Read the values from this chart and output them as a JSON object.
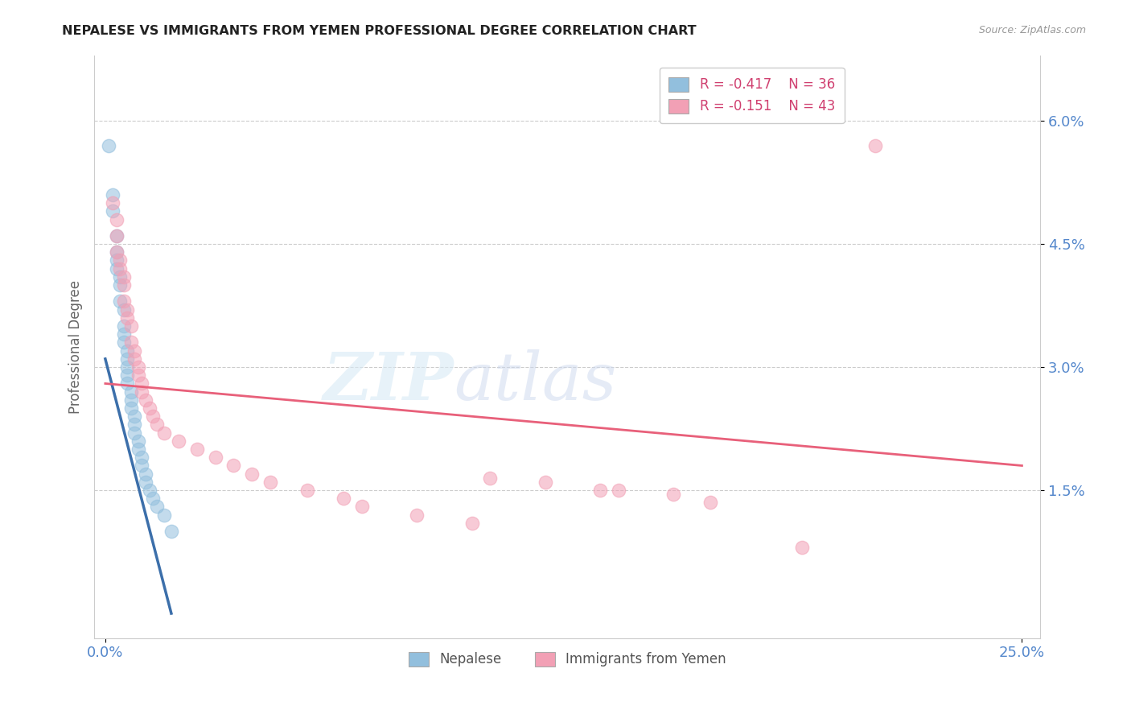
{
  "title": "NEPALESE VS IMMIGRANTS FROM YEMEN PROFESSIONAL DEGREE CORRELATION CHART",
  "source": "Source: ZipAtlas.com",
  "ylabel": "Professional Degree",
  "xlim": [
    0.0,
    0.25
  ],
  "ylim": [
    0.0,
    0.065
  ],
  "ytick_values": [
    0.015,
    0.03,
    0.045,
    0.06
  ],
  "ytick_labels": [
    "1.5%",
    "3.0%",
    "4.5%",
    "6.0%"
  ],
  "xtick_values": [
    0.0,
    0.25
  ],
  "xtick_labels": [
    "0.0%",
    "25.0%"
  ],
  "legend_blue_r": "-0.417",
  "legend_blue_n": "36",
  "legend_pink_r": "-0.151",
  "legend_pink_n": "43",
  "blue_color": "#92bfdd",
  "pink_color": "#f2a0b5",
  "blue_line_color": "#3c6faa",
  "pink_line_color": "#e8607a",
  "blue_scatter_edge": "#7aadd0",
  "pink_scatter_edge": "#ee8da5",
  "nepalese_x": [
    0.001,
    0.002,
    0.002,
    0.003,
    0.003,
    0.003,
    0.003,
    0.004,
    0.004,
    0.004,
    0.005,
    0.005,
    0.005,
    0.005,
    0.006,
    0.006,
    0.006,
    0.006,
    0.006,
    0.007,
    0.007,
    0.007,
    0.008,
    0.008,
    0.008,
    0.009,
    0.009,
    0.01,
    0.01,
    0.011,
    0.011,
    0.012,
    0.013,
    0.014,
    0.016,
    0.018
  ],
  "nepalese_y": [
    0.057,
    0.051,
    0.049,
    0.046,
    0.044,
    0.043,
    0.042,
    0.041,
    0.04,
    0.038,
    0.037,
    0.035,
    0.034,
    0.033,
    0.032,
    0.031,
    0.03,
    0.029,
    0.028,
    0.027,
    0.026,
    0.025,
    0.024,
    0.023,
    0.022,
    0.021,
    0.02,
    0.019,
    0.018,
    0.017,
    0.016,
    0.015,
    0.014,
    0.013,
    0.012,
    0.01
  ],
  "blue_line_x": [
    0.0,
    0.018
  ],
  "blue_line_y": [
    0.031,
    0.0
  ],
  "yemen_x": [
    0.002,
    0.003,
    0.003,
    0.003,
    0.004,
    0.004,
    0.005,
    0.005,
    0.005,
    0.006,
    0.006,
    0.007,
    0.007,
    0.008,
    0.008,
    0.009,
    0.009,
    0.01,
    0.01,
    0.011,
    0.012,
    0.013,
    0.014,
    0.016,
    0.02,
    0.025,
    0.03,
    0.035,
    0.04,
    0.045,
    0.055,
    0.065,
    0.07,
    0.085,
    0.1,
    0.105,
    0.12,
    0.135,
    0.14,
    0.155,
    0.165,
    0.19,
    0.21
  ],
  "yemen_y": [
    0.05,
    0.048,
    0.046,
    0.044,
    0.043,
    0.042,
    0.041,
    0.04,
    0.038,
    0.037,
    0.036,
    0.035,
    0.033,
    0.032,
    0.031,
    0.03,
    0.029,
    0.028,
    0.027,
    0.026,
    0.025,
    0.024,
    0.023,
    0.022,
    0.021,
    0.02,
    0.019,
    0.018,
    0.017,
    0.016,
    0.015,
    0.014,
    0.013,
    0.012,
    0.011,
    0.0165,
    0.016,
    0.015,
    0.015,
    0.0145,
    0.0135,
    0.008,
    0.057
  ],
  "pink_line_x": [
    0.0,
    0.25
  ],
  "pink_line_y": [
    0.028,
    0.018
  ]
}
